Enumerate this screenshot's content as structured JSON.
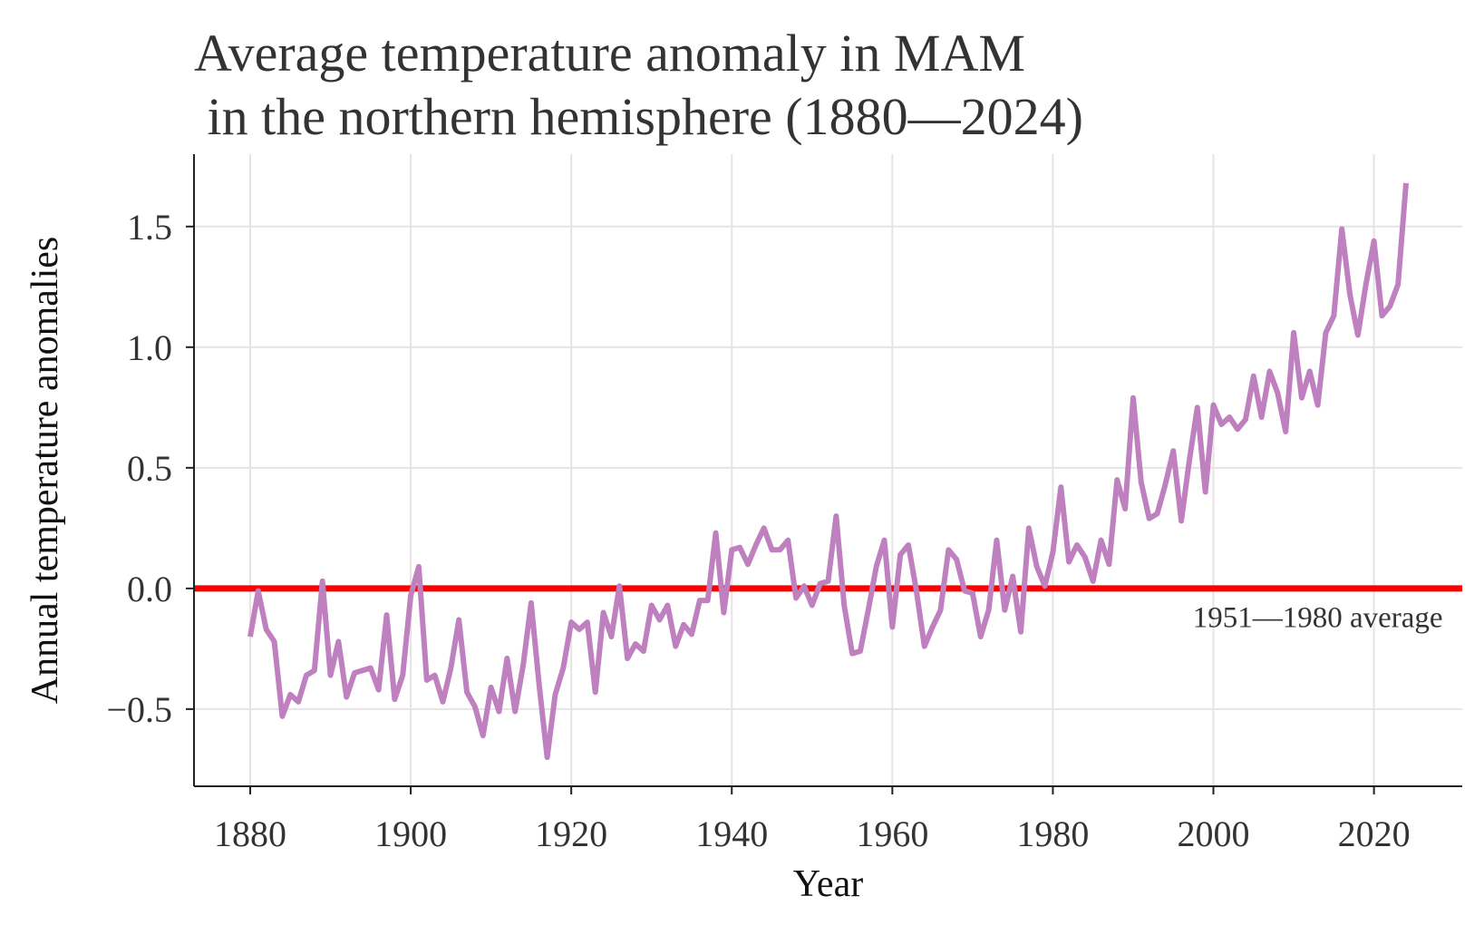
{
  "chart_data": {
    "type": "line",
    "title": "Average temperature anomaly in MAM\n in the northern hemisphere (1880—2024)",
    "title_lines": [
      "Average temperature anomaly in MAM",
      " in the northern hemisphere (1880—2024)"
    ],
    "xlabel": "Year",
    "ylabel": "Annual temperature anomalies",
    "xlim": [
      1873,
      2031
    ],
    "ylim": [
      -0.82,
      1.8
    ],
    "x_ticks": [
      1880,
      1900,
      1920,
      1940,
      1960,
      1980,
      2000,
      2020
    ],
    "x_tick_labels": [
      "1880",
      "1900",
      "1920",
      "1940",
      "1960",
      "1980",
      "2000",
      "2020"
    ],
    "y_ticks": [
      -0.5,
      0.0,
      0.5,
      1.0,
      1.5
    ],
    "y_tick_labels": [
      "−0.5",
      "0.0",
      "0.5",
      "1.0",
      "1.5"
    ],
    "grid": true,
    "reference_line": {
      "y": 0.0,
      "label": "1951—1980 average",
      "color": "#ff0000"
    },
    "series": [
      {
        "color": "#bf80bf",
        "x": [
          1880,
          1881,
          1882,
          1883,
          1884,
          1885,
          1886,
          1887,
          1888,
          1889,
          1890,
          1891,
          1892,
          1893,
          1894,
          1895,
          1896,
          1897,
          1898,
          1899,
          1900,
          1901,
          1902,
          1903,
          1904,
          1905,
          1906,
          1907,
          1908,
          1909,
          1910,
          1911,
          1912,
          1913,
          1914,
          1915,
          1916,
          1917,
          1918,
          1919,
          1920,
          1921,
          1922,
          1923,
          1924,
          1925,
          1926,
          1927,
          1928,
          1929,
          1930,
          1931,
          1932,
          1933,
          1934,
          1935,
          1936,
          1937,
          1938,
          1939,
          1940,
          1941,
          1942,
          1943,
          1944,
          1945,
          1946,
          1947,
          1948,
          1949,
          1950,
          1951,
          1952,
          1953,
          1954,
          1955,
          1956,
          1957,
          1958,
          1959,
          1960,
          1961,
          1962,
          1963,
          1964,
          1965,
          1966,
          1967,
          1968,
          1969,
          1970,
          1971,
          1972,
          1973,
          1974,
          1975,
          1976,
          1977,
          1978,
          1979,
          1980,
          1981,
          1982,
          1983,
          1984,
          1985,
          1986,
          1987,
          1988,
          1989,
          1990,
          1991,
          1992,
          1993,
          1994,
          1995,
          1996,
          1997,
          1998,
          1999,
          2000,
          2001,
          2002,
          2003,
          2004,
          2005,
          2006,
          2007,
          2008,
          2009,
          2010,
          2011,
          2012,
          2013,
          2014,
          2015,
          2016,
          2017,
          2018,
          2019,
          2020,
          2021,
          2022,
          2023,
          2024
        ],
        "y": [
          -0.2,
          -0.01,
          -0.17,
          -0.22,
          -0.53,
          -0.44,
          -0.47,
          -0.36,
          -0.34,
          0.03,
          -0.36,
          -0.22,
          -0.45,
          -0.35,
          -0.34,
          -0.33,
          -0.42,
          -0.11,
          -0.46,
          -0.36,
          -0.03,
          0.09,
          -0.38,
          -0.36,
          -0.47,
          -0.33,
          -0.13,
          -0.43,
          -0.49,
          -0.61,
          -0.41,
          -0.51,
          -0.29,
          -0.51,
          -0.32,
          -0.06,
          -0.4,
          -0.7,
          -0.44,
          -0.33,
          -0.14,
          -0.17,
          -0.14,
          -0.43,
          -0.1,
          -0.2,
          0.01,
          -0.29,
          -0.23,
          -0.26,
          -0.07,
          -0.13,
          -0.07,
          -0.24,
          -0.15,
          -0.19,
          -0.05,
          -0.05,
          0.23,
          -0.1,
          0.16,
          0.17,
          0.1,
          0.18,
          0.25,
          0.16,
          0.16,
          0.2,
          -0.04,
          0.01,
          -0.07,
          0.02,
          0.03,
          0.3,
          -0.07,
          -0.27,
          -0.26,
          -0.09,
          0.09,
          0.2,
          -0.16,
          0.14,
          0.18,
          -0.01,
          -0.24,
          -0.16,
          -0.09,
          0.16,
          0.12,
          -0.01,
          -0.02,
          -0.2,
          -0.09,
          0.2,
          -0.09,
          0.05,
          -0.18,
          0.25,
          0.09,
          0.01,
          0.15,
          0.42,
          0.11,
          0.18,
          0.13,
          0.03,
          0.2,
          0.1,
          0.45,
          0.33,
          0.79,
          0.44,
          0.29,
          0.31,
          0.43,
          0.57,
          0.28,
          0.53,
          0.75,
          0.4,
          0.76,
          0.68,
          0.71,
          0.66,
          0.7,
          0.88,
          0.71,
          0.9,
          0.81,
          0.65,
          1.06,
          0.79,
          0.9,
          0.76,
          1.06,
          1.13,
          1.49,
          1.22,
          1.05,
          1.26,
          1.44,
          1.13,
          1.17,
          1.26,
          1.68
        ]
      }
    ]
  }
}
